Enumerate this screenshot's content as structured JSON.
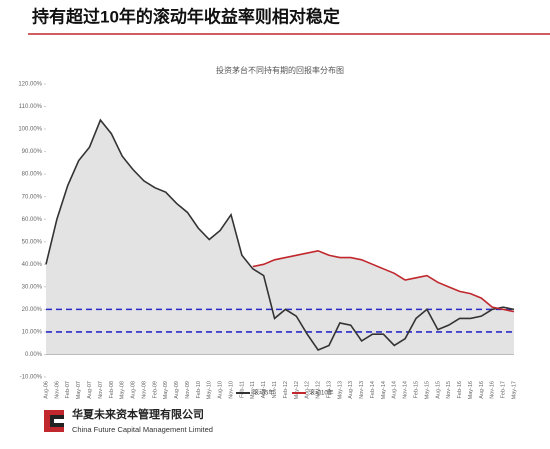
{
  "header": {
    "title": "持有超过10年的滚动年收益率则相对稳定"
  },
  "chart_data": {
    "type": "line",
    "title": "投资茅台不同持有期的回报率分布图",
    "categories": [
      "Aug-06",
      "Nov-06",
      "Feb-07",
      "May-07",
      "Aug-07",
      "Nov-07",
      "Feb-08",
      "May-08",
      "Aug-08",
      "Nov-08",
      "Feb-09",
      "May-09",
      "Aug-09",
      "Nov-09",
      "Feb-10",
      "May-10",
      "Aug-10",
      "Nov-10",
      "Feb-11",
      "May-11",
      "Aug-11",
      "Nov-11",
      "Feb-12",
      "May-12",
      "Aug-12",
      "Nov-12",
      "Feb-13",
      "May-13",
      "Aug-13",
      "Nov-13",
      "Feb-14",
      "May-14",
      "Aug-14",
      "Nov-14",
      "Feb-15",
      "May-15",
      "Aug-15",
      "Nov-15",
      "Feb-16",
      "May-16",
      "Aug-16",
      "Nov-16",
      "Feb-17",
      "May-17"
    ],
    "series": [
      {
        "name": "滚动5年",
        "color": "#333333",
        "values": [
          40,
          60,
          75,
          86,
          92,
          104,
          98,
          88,
          82,
          77,
          74,
          72,
          67,
          63,
          56,
          51,
          55,
          62,
          44,
          38,
          35,
          16,
          20,
          17,
          9,
          2,
          4,
          14,
          13,
          6,
          9,
          9,
          4,
          7,
          16,
          20,
          11,
          13,
          16,
          16,
          17,
          20,
          21,
          20
        ]
      },
      {
        "name": "滚动10年",
        "color": "#c0282d",
        "values": [
          null,
          null,
          null,
          null,
          null,
          null,
          null,
          null,
          null,
          null,
          null,
          null,
          null,
          null,
          null,
          null,
          null,
          null,
          null,
          39,
          40,
          42,
          43,
          44,
          45,
          46,
          44,
          43,
          43,
          42,
          40,
          38,
          36,
          33,
          34,
          35,
          32,
          30,
          28,
          27,
          25,
          21,
          20,
          19
        ]
      }
    ],
    "ylim": [
      -10,
      120
    ],
    "yticks": [
      {
        "value": -10,
        "label": "-10.00%"
      },
      {
        "value": 0,
        "label": "0.00%"
      },
      {
        "value": 10,
        "label": "10.00%"
      },
      {
        "value": 20,
        "label": "20.00%"
      },
      {
        "value": 30,
        "label": "30.00%"
      },
      {
        "value": 40,
        "label": "40.00%"
      },
      {
        "value": 50,
        "label": "50.00%"
      },
      {
        "value": 60,
        "label": "60.00%"
      },
      {
        "value": 70,
        "label": "70.00%"
      },
      {
        "value": 80,
        "label": "80.00%"
      },
      {
        "value": 90,
        "label": "90.00%"
      },
      {
        "value": 100,
        "label": "100.00%"
      },
      {
        "value": 110,
        "label": "110.00%"
      },
      {
        "value": 120,
        "label": "120.00%"
      }
    ],
    "reference_lines": [
      20,
      10
    ],
    "reference_color": "#2b2bc8",
    "area_color": "#e3e3e3"
  },
  "footer": {
    "company_cn": "华夏未来资本管理有限公司",
    "company_en": "China Future Capital Management Limited"
  }
}
